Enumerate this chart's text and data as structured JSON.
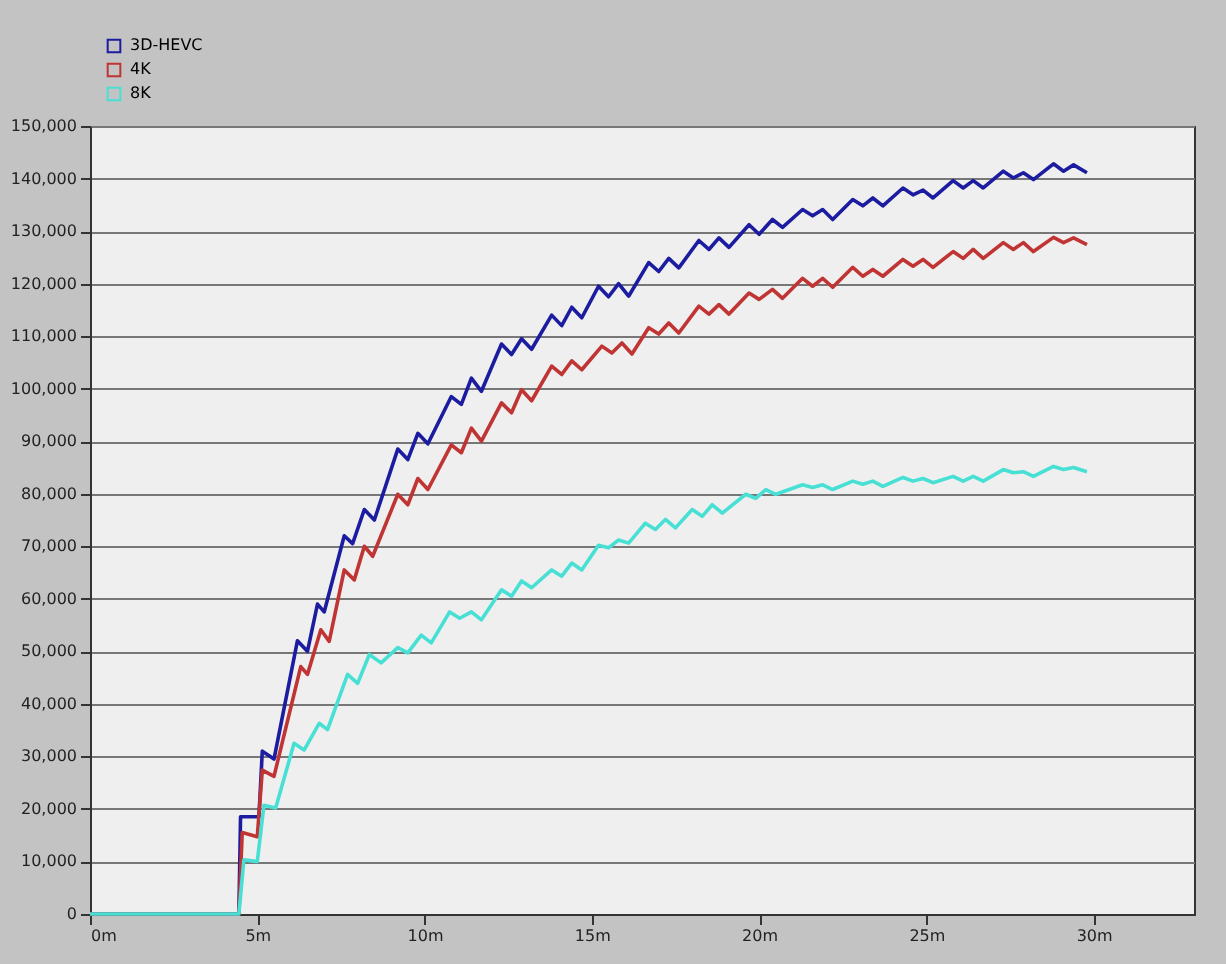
{
  "chart_data": {
    "type": "line",
    "xlim": [
      0,
      33
    ],
    "ylim": [
      0,
      150000
    ],
    "xticks": [
      {
        "value": 0,
        "label": "0m"
      },
      {
        "value": 5,
        "label": "5m"
      },
      {
        "value": 10,
        "label": "10m"
      },
      {
        "value": 15,
        "label": "15m"
      },
      {
        "value": 20,
        "label": "20m"
      },
      {
        "value": 25,
        "label": "25m"
      },
      {
        "value": 30,
        "label": "30m"
      }
    ],
    "yticks": [
      0,
      {
        "value": 10000,
        "label": "10,000"
      },
      {
        "value": 20000,
        "label": "20,000"
      },
      {
        "value": 30000,
        "label": "30,000"
      },
      {
        "value": 40000,
        "label": "40,000"
      },
      {
        "value": 50000,
        "label": "50,000"
      },
      {
        "value": 60000,
        "label": "60,000"
      },
      {
        "value": 70000,
        "label": "70,000"
      },
      {
        "value": 80000,
        "label": "80,000"
      },
      {
        "value": 90000,
        "label": "90,000"
      },
      {
        "value": 100000,
        "label": "100,000"
      },
      {
        "value": 110000,
        "label": "110,000"
      },
      {
        "value": 120000,
        "label": "120,000"
      },
      {
        "value": 130000,
        "label": "130,000"
      },
      {
        "value": 140000,
        "label": "140,000"
      },
      {
        "value": 150000,
        "label": "150,000"
      }
    ],
    "grid": "y",
    "legend": "top left",
    "marker": "none",
    "line_style": "solid",
    "series": [
      {
        "name": "3D-HEVC",
        "color": "#1c1ca0",
        "x": [
          0,
          4.45,
          4.5,
          5.05,
          5.15,
          5.5,
          6.2,
          6.5,
          6.8,
          7.0,
          7.6,
          7.85,
          8.2,
          8.5,
          9.2,
          9.5,
          9.8,
          10.1,
          10.8,
          11.1,
          11.4,
          11.7,
          12.3,
          12.6,
          12.9,
          13.2,
          13.8,
          14.1,
          14.4,
          14.7,
          15.2,
          15.5,
          15.8,
          16.1,
          16.7,
          17.0,
          17.3,
          17.6,
          18.2,
          18.5,
          18.8,
          19.1,
          19.7,
          20.0,
          20.4,
          20.7,
          21.3,
          21.6,
          21.9,
          22.2,
          22.8,
          23.1,
          23.4,
          23.7,
          24.3,
          24.6,
          24.9,
          25.2,
          25.8,
          26.1,
          26.4,
          26.7,
          27.3,
          27.6,
          27.9,
          28.2,
          28.8,
          29.1,
          29.4,
          29.8
        ],
        "values": [
          0,
          0,
          18500,
          18500,
          31000,
          29500,
          52000,
          50000,
          59000,
          57500,
          72000,
          70500,
          77000,
          75000,
          88500,
          86500,
          91500,
          89500,
          98500,
          97000,
          102000,
          99500,
          108500,
          106500,
          109500,
          107500,
          114000,
          112000,
          115500,
          113500,
          119500,
          117500,
          120000,
          117600,
          124000,
          122300,
          124800,
          123000,
          128200,
          126500,
          128700,
          126900,
          131200,
          129400,
          132200,
          130700,
          134100,
          132900,
          134100,
          132200,
          136000,
          134800,
          136300,
          134800,
          138200,
          136900,
          137800,
          136300,
          139600,
          138200,
          139600,
          138200,
          141400,
          140100,
          141100,
          139800,
          142800,
          141400,
          142600,
          141100
        ]
      },
      {
        "name": "4K",
        "color": "#c03434",
        "x": [
          0,
          4.45,
          4.55,
          5.0,
          5.15,
          5.5,
          6.3,
          6.5,
          6.9,
          7.15,
          7.6,
          7.9,
          8.2,
          8.45,
          9.2,
          9.5,
          9.8,
          10.1,
          10.8,
          11.1,
          11.4,
          11.7,
          12.3,
          12.6,
          12.9,
          13.2,
          13.8,
          14.1,
          14.4,
          14.7,
          15.3,
          15.6,
          15.9,
          16.2,
          16.7,
          17.0,
          17.3,
          17.6,
          18.2,
          18.5,
          18.8,
          19.1,
          19.7,
          20.0,
          20.4,
          20.7,
          21.3,
          21.6,
          21.9,
          22.2,
          22.8,
          23.1,
          23.4,
          23.7,
          24.3,
          24.6,
          24.9,
          25.2,
          25.8,
          26.1,
          26.4,
          26.7,
          27.3,
          27.6,
          27.9,
          28.2,
          28.8,
          29.1,
          29.4,
          29.8
        ],
        "values": [
          0,
          0,
          15500,
          14700,
          27400,
          26200,
          47100,
          45600,
          54100,
          51900,
          65500,
          63600,
          70000,
          68100,
          79900,
          77900,
          82900,
          80800,
          89300,
          87800,
          92500,
          90000,
          97300,
          95400,
          99800,
          97700,
          104300,
          102700,
          105300,
          103600,
          108100,
          106800,
          108700,
          106600,
          111600,
          110400,
          112500,
          110600,
          115700,
          114200,
          116000,
          114200,
          118200,
          117000,
          118900,
          117200,
          121000,
          119500,
          121000,
          119300,
          123100,
          121400,
          122700,
          121400,
          124600,
          123300,
          124600,
          123100,
          126100,
          124800,
          126500,
          124800,
          127800,
          126500,
          127800,
          126100,
          128800,
          127800,
          128700,
          127400
        ]
      },
      {
        "name": "8K",
        "color": "#48e0d4",
        "x": [
          0,
          4.45,
          4.6,
          5.0,
          5.2,
          5.55,
          6.1,
          6.4,
          6.85,
          7.1,
          7.7,
          8.0,
          8.35,
          8.7,
          9.2,
          9.5,
          9.9,
          10.2,
          10.75,
          11.05,
          11.4,
          11.7,
          12.3,
          12.6,
          12.9,
          13.2,
          13.8,
          14.1,
          14.4,
          14.7,
          15.2,
          15.5,
          15.8,
          16.1,
          16.6,
          16.9,
          17.2,
          17.5,
          18.0,
          18.3,
          18.6,
          18.9,
          19.6,
          19.9,
          20.2,
          20.5,
          21.3,
          21.6,
          21.9,
          22.2,
          22.8,
          23.1,
          23.4,
          23.7,
          24.3,
          24.6,
          24.9,
          25.2,
          25.8,
          26.1,
          26.4,
          26.7,
          27.3,
          27.6,
          27.9,
          28.2,
          28.8,
          29.1,
          29.4,
          29.8
        ],
        "values": [
          0,
          0,
          10300,
          10000,
          20700,
          20200,
          32500,
          31200,
          36300,
          35100,
          45600,
          43900,
          49400,
          47800,
          50700,
          49700,
          53100,
          51600,
          57500,
          56300,
          57500,
          56000,
          61700,
          60500,
          63400,
          62100,
          65500,
          64300,
          66800,
          65500,
          70200,
          69700,
          71200,
          70600,
          74400,
          73200,
          75100,
          73500,
          77000,
          75700,
          77900,
          76300,
          79900,
          79100,
          80800,
          79900,
          81700,
          81200,
          81700,
          80800,
          82400,
          81800,
          82400,
          81400,
          83100,
          82400,
          82900,
          82100,
          83300,
          82400,
          83300,
          82400,
          84600,
          84000,
          84200,
          83300,
          85200,
          84600,
          85000,
          84200
        ]
      }
    ]
  }
}
